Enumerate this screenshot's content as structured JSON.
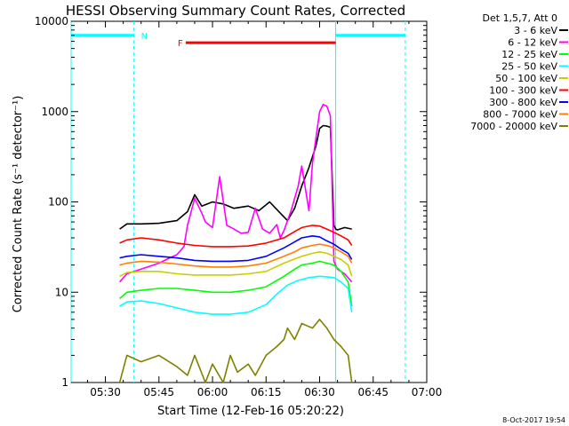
{
  "chart_data": {
    "type": "line",
    "title": "HESSI Observing Summary Count Rates, Corrected",
    "xlabel": "Start Time (12-Feb-16 05:20:22)",
    "ylabel": "Corrected Count Rate (s⁻¹ detector⁻¹)",
    "y_scale": "log",
    "ylim": [
      1,
      10000
    ],
    "xlim_min": [
      20.4,
      120
    ],
    "x_tick_values": [
      30,
      45,
      60,
      75,
      90,
      105,
      120
    ],
    "x_tick_labels": [
      "05:30",
      "05:45",
      "06:00",
      "06:15",
      "06:30",
      "06:45",
      "07:00"
    ],
    "y_tick_values": [
      1,
      10,
      100,
      1000,
      10000
    ],
    "y_tick_labels": [
      "1",
      "10",
      "100",
      "1000",
      "10000"
    ],
    "legend_header": "Det 1,5,7, Att 0",
    "legend_position": "right",
    "x_units": "minutes after 05:00",
    "series": [
      {
        "name": "3 - 6 keV",
        "color": "#000000",
        "x": [
          34,
          36,
          40,
          45,
          50,
          53,
          55,
          57,
          60,
          63,
          66,
          70,
          73,
          76,
          79,
          81,
          83,
          85,
          87,
          89,
          90,
          91,
          92,
          93,
          94,
          94.5,
          95,
          97,
          99
        ],
        "y": [
          50,
          57,
          57,
          58,
          62,
          78,
          120,
          90,
          100,
          95,
          85,
          90,
          80,
          100,
          75,
          62,
          85,
          150,
          240,
          420,
          650,
          700,
          690,
          670,
          55,
          50,
          49,
          52,
          50
        ]
      },
      {
        "name": "6 - 12 keV",
        "color": "#ff00ff",
        "x": [
          34,
          36,
          40,
          45,
          48,
          50,
          52,
          53,
          55,
          57,
          58,
          60,
          62,
          64,
          66,
          68,
          70,
          72,
          74,
          76,
          78,
          79,
          80,
          82,
          84,
          85,
          87,
          88,
          89,
          90,
          91,
          92,
          93,
          94,
          95,
          97,
          99
        ],
        "y": [
          13,
          16,
          18,
          21,
          24,
          26,
          32,
          55,
          110,
          75,
          60,
          52,
          190,
          55,
          50,
          45,
          46,
          85,
          50,
          45,
          56,
          40,
          48,
          80,
          150,
          250,
          80,
          270,
          520,
          1000,
          1200,
          1150,
          900,
          22,
          18,
          16,
          13
        ]
      },
      {
        "name": "12 - 25 keV",
        "color": "#00ff00",
        "x": [
          34,
          36,
          40,
          45,
          50,
          55,
          60,
          65,
          70,
          75,
          80,
          83,
          85,
          88,
          90,
          92,
          94,
          96,
          98,
          99
        ],
        "y": [
          8.5,
          10,
          10.5,
          11,
          11,
          10.5,
          10,
          10,
          10.5,
          11.5,
          15,
          18,
          20,
          21,
          22,
          21,
          20,
          17,
          13,
          7
        ]
      },
      {
        "name": "25 - 50 keV",
        "color": "#00ffff",
        "x": [
          34,
          36,
          40,
          45,
          50,
          55,
          60,
          65,
          70,
          75,
          78,
          81,
          84,
          87,
          90,
          92,
          94,
          96,
          98,
          99
        ],
        "y": [
          7,
          7.8,
          8,
          7.5,
          6.7,
          6.0,
          5.7,
          5.7,
          6.0,
          7.3,
          9.5,
          12,
          13.5,
          14.5,
          15,
          14.8,
          14.5,
          13,
          11,
          6
        ]
      },
      {
        "name": "50 - 100 keV",
        "color": "#cccc00",
        "x": [
          34,
          36,
          40,
          45,
          50,
          55,
          60,
          65,
          70,
          75,
          80,
          85,
          88,
          90,
          92,
          94,
          96,
          98,
          99
        ],
        "y": [
          15,
          16.5,
          17,
          17,
          16,
          15.5,
          15.5,
          15.5,
          16,
          17,
          21,
          25,
          27,
          28,
          27,
          25,
          23,
          20,
          15
        ]
      },
      {
        "name": "100 - 300 keV",
        "color": "#ff0000",
        "x": [
          34,
          36,
          40,
          45,
          50,
          55,
          60,
          65,
          70,
          75,
          80,
          83,
          85,
          88,
          90,
          92,
          94,
          96,
          98,
          99
        ],
        "y": [
          35,
          38,
          40,
          38,
          35,
          33,
          32,
          32,
          32.5,
          35,
          40,
          47,
          52,
          55,
          54,
          50,
          46,
          42,
          38,
          33
        ]
      },
      {
        "name": "300 - 800 keV",
        "color": "#0000ff",
        "x": [
          34,
          36,
          40,
          45,
          50,
          55,
          60,
          65,
          70,
          75,
          80,
          83,
          85,
          88,
          90,
          92,
          94,
          96,
          98,
          99
        ],
        "y": [
          24,
          25,
          26,
          25,
          24,
          22.5,
          22,
          22,
          22.5,
          25,
          31,
          36,
          40,
          42,
          41,
          37,
          34,
          30,
          27,
          23
        ]
      },
      {
        "name": "800 - 7000 keV",
        "color": "#ff8000",
        "x": [
          34,
          36,
          40,
          45,
          50,
          55,
          60,
          65,
          70,
          75,
          80,
          83,
          85,
          88,
          90,
          92,
          94,
          96,
          98,
          99
        ],
        "y": [
          20,
          21,
          22,
          21.5,
          20.5,
          19.5,
          19,
          19,
          19.5,
          21,
          25,
          28,
          31,
          33,
          34,
          33,
          31,
          28,
          25,
          21
        ]
      },
      {
        "name": "7000 - 20000 keV",
        "color": "#808000",
        "x": [
          34,
          36,
          40,
          45,
          50,
          53,
          55,
          58,
          60,
          63,
          65,
          67,
          70,
          72,
          75,
          78,
          80,
          81,
          83,
          85,
          88,
          90,
          92,
          94,
          96,
          98,
          99
        ],
        "y": [
          1,
          2,
          1.7,
          2,
          1.5,
          1.2,
          2,
          1,
          1.6,
          1,
          2,
          1.3,
          1.6,
          1.2,
          2,
          2.5,
          3,
          4,
          3,
          4.5,
          4,
          5,
          4,
          3,
          2.5,
          2,
          1
        ]
      }
    ],
    "attenuator_flags": [
      {
        "label": "N",
        "color": "#00ffff",
        "segments": [
          [
            20.4,
            38
          ],
          [
            94.5,
            114
          ]
        ],
        "level": 7000
      },
      {
        "label": "F",
        "color": "#ff0000",
        "segments": [
          [
            52.5,
            94.5
          ]
        ],
        "level": 5800
      }
    ],
    "vertical_markers": [
      {
        "x": 20.4,
        "color": "#00ffff",
        "style": "solid"
      },
      {
        "x": 38,
        "color": "#00ffff",
        "style": "dashed"
      },
      {
        "x": 94.5,
        "color": "#00ffff",
        "style": "solid"
      },
      {
        "x": 114,
        "color": "#00ffff",
        "style": "dashed"
      }
    ]
  },
  "footer_stamp": "8-Oct-2017 19:54"
}
